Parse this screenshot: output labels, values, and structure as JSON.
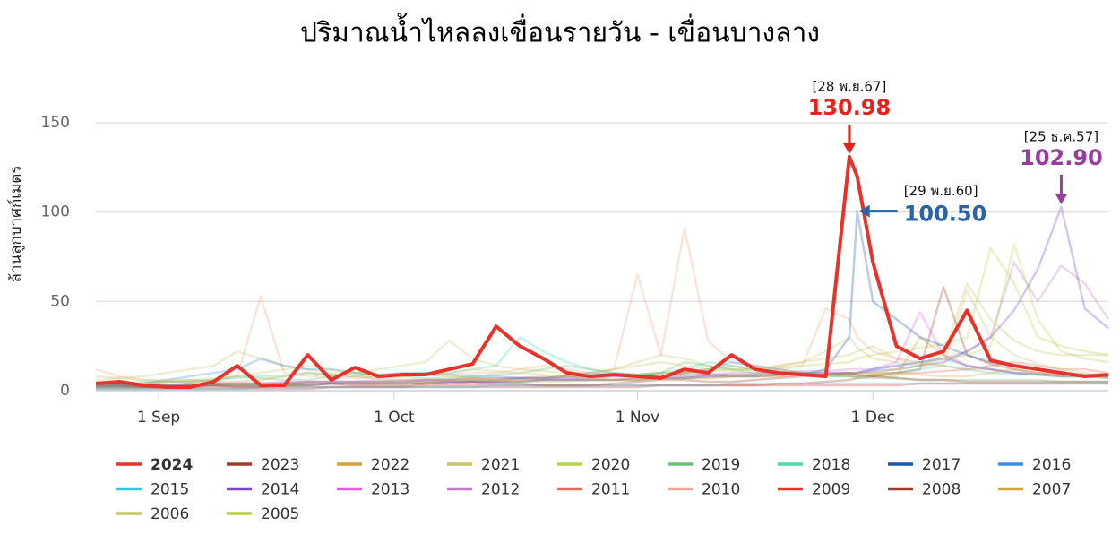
{
  "chart_data": {
    "type": "line",
    "title": "ปริมาณน้ำไหลลงเขื่อนรายวัน - เขื่อนบางลาง",
    "y_label": "ล้านลูกบาศก์เมตร",
    "x": [
      "24 Aug",
      "27 Aug",
      "30 Aug",
      "2 Sep",
      "5 Sep",
      "8 Sep",
      "11 Sep",
      "14 Sep",
      "17 Sep",
      "20 Sep",
      "23 Sep",
      "26 Sep",
      "29 Sep",
      "2 Oct",
      "5 Oct",
      "8 Oct",
      "11 Oct",
      "14 Oct",
      "17 Oct",
      "20 Oct",
      "23 Oct",
      "26 Oct",
      "29 Oct",
      "1 Nov",
      "4 Nov",
      "7 Nov",
      "10 Nov",
      "13 Nov",
      "16 Nov",
      "19 Nov",
      "22 Nov",
      "25 Nov",
      "28 Nov",
      "29 Nov",
      "1 Dec",
      "4 Dec",
      "7 Dec",
      "10 Dec",
      "13 Dec",
      "16 Dec",
      "19 Dec",
      "22 Dec",
      "25 Dec",
      "28 Dec",
      "31 Dec"
    ],
    "xlim": [
      "24 Aug",
      "31 Dec"
    ],
    "xticks": [
      "1 Sep",
      "1 Oct",
      "1 Nov",
      "1 Dec"
    ],
    "ylim": [
      0,
      150
    ],
    "yticks": [
      0,
      50,
      100,
      150
    ],
    "grid": true,
    "series": [
      {
        "name": "2024",
        "color": "#e8322a",
        "highlight": true,
        "annotation": {
          "date": "[28 พ.ย.67]",
          "value": "130.98",
          "color": "#e8221a"
        },
        "values": [
          4,
          5,
          3,
          2,
          2,
          5,
          14,
          3,
          3,
          20,
          6,
          13,
          8,
          9,
          9,
          12,
          15,
          36,
          25,
          18,
          10,
          8,
          9,
          8,
          7,
          12,
          10,
          20,
          12,
          10,
          9,
          8,
          130.98,
          120,
          72,
          25,
          18,
          22,
          45,
          17,
          14,
          12,
          10,
          8,
          9
        ]
      },
      {
        "name": "2023",
        "color": "#9b3f2a",
        "values": [
          3,
          3,
          2,
          2,
          3,
          3,
          2,
          2,
          3,
          3,
          4,
          3,
          3,
          3,
          4,
          4,
          5,
          4,
          4,
          3,
          3,
          3,
          4,
          5,
          6,
          6,
          5,
          5,
          6,
          7,
          8,
          9,
          10,
          9,
          8,
          7,
          6,
          6,
          5,
          5,
          5,
          5,
          5,
          5,
          5
        ]
      },
      {
        "name": "2022",
        "color": "#d4a23a",
        "values": [
          5,
          4,
          4,
          5,
          6,
          5,
          5,
          6,
          8,
          10,
          9,
          8,
          7,
          8,
          9,
          8,
          7,
          6,
          6,
          7,
          8,
          7,
          6,
          6,
          8,
          10,
          9,
          8,
          9,
          12,
          10,
          9,
          8,
          8,
          9,
          10,
          9,
          8,
          8,
          10,
          12,
          10,
          8,
          8,
          7
        ]
      },
      {
        "name": "2021",
        "color": "#c9c46a",
        "values": [
          8,
          7,
          6,
          6,
          6,
          7,
          8,
          10,
          12,
          14,
          12,
          10,
          9,
          8,
          9,
          10,
          12,
          11,
          10,
          9,
          8,
          9,
          12,
          14,
          16,
          14,
          12,
          11,
          12,
          14,
          16,
          18,
          20,
          22,
          25,
          18,
          15,
          14,
          56,
          30,
          20,
          15,
          12,
          10,
          9
        ]
      },
      {
        "name": "2020",
        "color": "#b5d44a",
        "values": [
          2,
          2,
          2,
          2,
          3,
          3,
          3,
          3,
          3,
          4,
          4,
          4,
          4,
          5,
          5,
          6,
          6,
          6,
          5,
          5,
          5,
          6,
          6,
          6,
          7,
          7,
          7,
          8,
          8,
          8,
          9,
          9,
          10,
          10,
          10,
          12,
          14,
          18,
          20,
          25,
          82,
          40,
          22,
          18,
          16
        ]
      },
      {
        "name": "2019",
        "color": "#6cbf7a",
        "values": [
          3,
          3,
          4,
          5,
          5,
          6,
          8,
          7,
          6,
          6,
          8,
          10,
          9,
          8,
          7,
          7,
          8,
          9,
          10,
          12,
          14,
          12,
          10,
          9,
          10,
          16,
          14,
          12,
          10,
          10,
          9,
          8,
          8,
          7,
          7,
          7,
          6,
          6,
          6,
          6,
          6,
          6,
          5,
          5,
          5
        ]
      },
      {
        "name": "2018",
        "color": "#4dd9a8",
        "values": [
          4,
          4,
          5,
          5,
          5,
          6,
          7,
          8,
          8,
          10,
          9,
          8,
          8,
          9,
          10,
          10,
          12,
          14,
          30,
          22,
          16,
          12,
          10,
          9,
          10,
          12,
          16,
          14,
          12,
          10,
          9,
          8,
          8,
          8,
          9,
          10,
          12,
          14,
          12,
          10,
          9,
          9,
          8,
          8,
          8
        ]
      },
      {
        "name": "2017",
        "color": "#1a5aa8",
        "annotation": {
          "date": "[29 พ.ย.60]",
          "value": "100.50",
          "color": "#2a64a8"
        },
        "values": [
          2,
          2,
          2,
          2,
          2,
          3,
          3,
          3,
          3,
          3,
          4,
          4,
          4,
          4,
          4,
          5,
          5,
          5,
          5,
          6,
          6,
          6,
          6,
          6,
          7,
          7,
          8,
          8,
          8,
          9,
          9,
          12,
          30,
          100.5,
          50,
          40,
          30,
          25,
          20,
          16,
          14,
          12,
          10,
          9,
          8
        ]
      },
      {
        "name": "2016",
        "color": "#3a8ee6",
        "values": [
          2,
          3,
          4,
          6,
          8,
          10,
          12,
          18,
          14,
          12,
          12,
          10,
          9,
          10,
          10,
          9,
          8,
          8,
          7,
          7,
          8,
          10,
          9,
          8,
          8,
          10,
          12,
          16,
          14,
          12,
          10,
          9,
          9,
          10,
          12,
          14,
          16,
          18,
          14,
          12,
          10,
          9,
          8,
          8,
          7
        ]
      },
      {
        "name": "2015",
        "color": "#33c4e0",
        "values": [
          1,
          1,
          1,
          1,
          1,
          1,
          1,
          2,
          2,
          2,
          2,
          2,
          2,
          2,
          2,
          2,
          2,
          3,
          3,
          3,
          3,
          3,
          3,
          3,
          3,
          3,
          3,
          4,
          4,
          4,
          4,
          4,
          4,
          4,
          4,
          4,
          4,
          4,
          4,
          4,
          4,
          4,
          4,
          4,
          4
        ]
      },
      {
        "name": "2014",
        "color": "#7a46c8",
        "annotation": {
          "date": "[25 ธ.ค.57]",
          "value": "102.90",
          "color": "#9b3ca0"
        },
        "values": [
          3,
          3,
          3,
          3,
          3,
          4,
          4,
          4,
          4,
          5,
          5,
          5,
          5,
          5,
          6,
          6,
          6,
          6,
          7,
          7,
          7,
          7,
          8,
          8,
          8,
          8,
          9,
          9,
          9,
          10,
          10,
          10,
          10,
          10,
          11,
          12,
          14,
          16,
          22,
          30,
          45,
          68,
          102.9,
          46,
          35
        ]
      },
      {
        "name": "2013",
        "color": "#e05ce0",
        "values": [
          2,
          2,
          2,
          3,
          3,
          3,
          3,
          3,
          4,
          4,
          4,
          4,
          4,
          5,
          5,
          5,
          5,
          5,
          6,
          6,
          6,
          6,
          6,
          7,
          7,
          7,
          8,
          8,
          8,
          9,
          9,
          10,
          10,
          10,
          12,
          16,
          44,
          20,
          14,
          12,
          10,
          9,
          8,
          8,
          8
        ]
      },
      {
        "name": "2012",
        "color": "#c47ac8",
        "values": [
          3,
          3,
          3,
          3,
          4,
          4,
          4,
          4,
          5,
          5,
          5,
          5,
          6,
          6,
          6,
          6,
          7,
          7,
          7,
          7,
          8,
          8,
          8,
          8,
          9,
          9,
          9,
          10,
          10,
          10,
          11,
          11,
          12,
          12,
          12,
          14,
          16,
          18,
          22,
          30,
          72,
          50,
          70,
          60,
          40
        ]
      },
      {
        "name": "2011",
        "color": "#e86a5a",
        "values": [
          4,
          3,
          3,
          3,
          3,
          3,
          3,
          3,
          4,
          4,
          4,
          4,
          4,
          4,
          5,
          5,
          5,
          5,
          5,
          6,
          6,
          6,
          6,
          7,
          7,
          7,
          7,
          8,
          8,
          8,
          9,
          9,
          9,
          10,
          10,
          10,
          10,
          11,
          12,
          14,
          16,
          14,
          12,
          12,
          10
        ]
      },
      {
        "name": "2010",
        "color": "#f0a890",
        "values": [
          12,
          8,
          6,
          5,
          5,
          6,
          8,
          53,
          10,
          8,
          8,
          7,
          7,
          8,
          9,
          9,
          10,
          10,
          12,
          14,
          12,
          10,
          12,
          65,
          20,
          91,
          28,
          16,
          14,
          12,
          14,
          46,
          40,
          30,
          22,
          18,
          16,
          14,
          12,
          12,
          10,
          10,
          9,
          9,
          8
        ]
      },
      {
        "name": "2009",
        "color": "#e8322a",
        "values": [
          2,
          2,
          2,
          2,
          2,
          2,
          2,
          2,
          2,
          2,
          2,
          2,
          2,
          2,
          3,
          3,
          3,
          3,
          3,
          3,
          3,
          3,
          3,
          3,
          3,
          3,
          3,
          3,
          3,
          3,
          3,
          3,
          3,
          3,
          3,
          3,
          4,
          4,
          4,
          4,
          4,
          4,
          4,
          4,
          4
        ]
      },
      {
        "name": "2008",
        "color": "#9b3f2a",
        "values": [
          1,
          1,
          1,
          1,
          1,
          1,
          1,
          1,
          1,
          1,
          2,
          2,
          2,
          2,
          2,
          2,
          2,
          2,
          2,
          2,
          2,
          2,
          2,
          2,
          3,
          3,
          3,
          3,
          3,
          4,
          4,
          5,
          6,
          7,
          8,
          10,
          12,
          58,
          20,
          15,
          12,
          10,
          9,
          8,
          8
        ]
      },
      {
        "name": "2007",
        "color": "#d4a23a",
        "values": [
          3,
          3,
          3,
          3,
          4,
          4,
          4,
          4,
          4,
          5,
          5,
          5,
          5,
          6,
          6,
          6,
          7,
          7,
          7,
          8,
          8,
          8,
          9,
          9,
          10,
          10,
          12,
          14,
          12,
          10,
          10,
          9,
          9,
          8,
          8,
          8,
          30,
          20,
          14,
          12,
          10,
          9,
          9,
          8,
          8
        ]
      },
      {
        "name": "2006",
        "color": "#c9c46a",
        "values": [
          6,
          7,
          8,
          10,
          12,
          14,
          22,
          18,
          14,
          12,
          10,
          10,
          12,
          14,
          16,
          28,
          18,
          14,
          12,
          11,
          10,
          10,
          12,
          16,
          20,
          18,
          14,
          12,
          12,
          14,
          16,
          22,
          30,
          24,
          18,
          16,
          14,
          20,
          60,
          40,
          28,
          22,
          20,
          20,
          20
        ]
      },
      {
        "name": "2005",
        "color": "#b5d44a",
        "values": [
          2,
          2,
          2,
          2,
          3,
          3,
          3,
          3,
          3,
          4,
          4,
          4,
          5,
          5,
          5,
          6,
          6,
          6,
          7,
          7,
          8,
          8,
          9,
          9,
          10,
          10,
          11,
          12,
          12,
          13,
          14,
          15,
          16,
          18,
          20,
          22,
          24,
          26,
          30,
          80,
          60,
          30,
          25,
          22,
          20
        ]
      }
    ]
  }
}
